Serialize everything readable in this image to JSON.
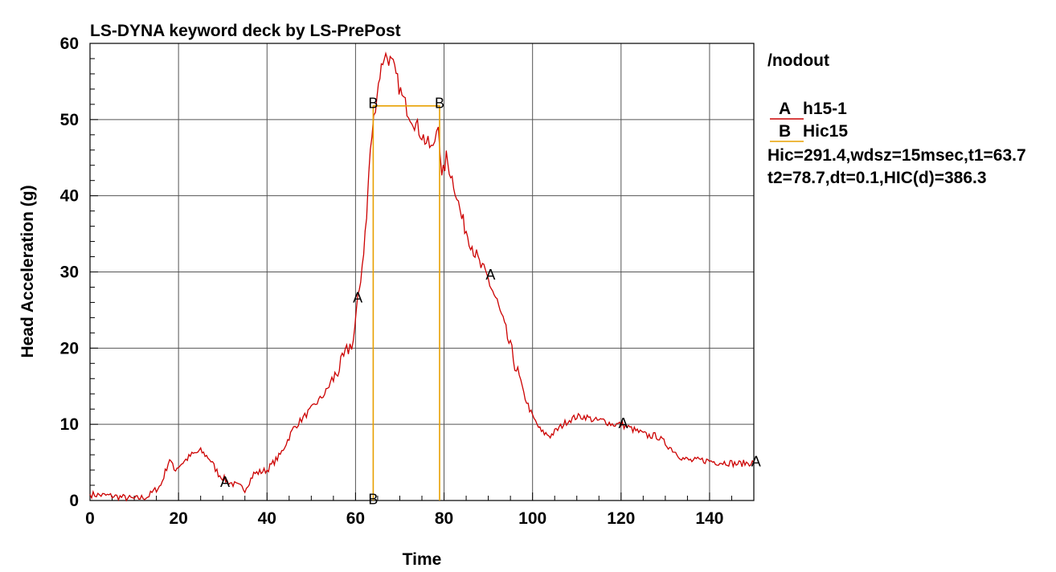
{
  "chart_data": {
    "type": "line",
    "title": "LS-DYNA keyword deck by LS-PrePost",
    "xlabel": "Time",
    "ylabel": "Head Acceleration (g)",
    "xlim": [
      0,
      150
    ],
    "ylim": [
      0,
      60
    ],
    "x_ticks": [
      "0",
      "20",
      "40",
      "60",
      "80",
      "100",
      "120",
      "140"
    ],
    "y_ticks": [
      "0",
      "10",
      "20",
      "30",
      "40",
      "50",
      "60"
    ],
    "grid": true,
    "legend_position": "right",
    "legend": {
      "header": "/nodout",
      "entries": [
        {
          "marker": "A",
          "name": "h15-1",
          "color": "#cc0000"
        },
        {
          "marker": "B",
          "name": "Hic15",
          "color": "#e8a000"
        }
      ],
      "notes": [
        "Hic=291.4,wdsz=15msec,t1=63.7",
        "t2=78.7,dt=0.1,HIC(d)=386.3"
      ]
    },
    "series": [
      {
        "name": "h15-1",
        "marker": "A",
        "color": "#cc0000",
        "x": [
          0,
          5,
          10,
          13,
          16,
          18,
          19,
          21,
          23,
          25,
          27,
          29,
          31,
          33,
          35,
          37,
          40,
          43,
          46,
          50,
          53,
          56,
          58,
          59.5,
          60.5,
          61.5,
          62.5,
          63,
          63.7,
          64.5,
          65.5,
          66.5,
          67.5,
          68.5,
          69.5,
          70.5,
          72,
          74,
          76,
          77.5,
          78.7,
          79.5,
          80.5,
          81.5,
          82.5,
          84,
          86,
          88,
          90,
          92,
          94,
          96,
          98,
          100,
          102,
          104,
          106,
          108,
          110,
          112,
          114,
          116,
          118,
          120,
          122,
          124,
          126,
          128,
          130,
          132,
          134,
          136,
          138,
          140,
          142,
          144,
          146,
          148,
          150
        ],
        "y": [
          0.8,
          0.6,
          0.2,
          0.5,
          2,
          5.5,
          4,
          5,
          6,
          6.5,
          5.5,
          3.5,
          2.5,
          2,
          1.5,
          3.5,
          4,
          6,
          9.5,
          12,
          14,
          17,
          19.5,
          21,
          26,
          31,
          37,
          43,
          48,
          52,
          56,
          58.5,
          58,
          57,
          55,
          53,
          51,
          49,
          47,
          46,
          50,
          42,
          45,
          43,
          41,
          37,
          34,
          31,
          29,
          26,
          22,
          18,
          14,
          11,
          9,
          8.5,
          9.5,
          10.5,
          11,
          11,
          10.5,
          10.5,
          10,
          10,
          9.5,
          9,
          8.5,
          8.5,
          7.5,
          6.5,
          5.5,
          5.2,
          5.3,
          5.2,
          5,
          5,
          4.8,
          4.9,
          5
        ]
      },
      {
        "name": "Hic15",
        "marker": "B",
        "color": "#e8a000",
        "x": [
          64,
          64,
          79,
          79
        ],
        "y": [
          0,
          51.8,
          51.8,
          0
        ]
      }
    ],
    "annotations": [
      {
        "text": "A",
        "x": 30.5,
        "y": 1.8
      },
      {
        "text": "A",
        "x": 60.5,
        "y": 26
      },
      {
        "text": "A",
        "x": 90.5,
        "y": 29
      },
      {
        "text": "A",
        "x": 120.5,
        "y": 9.5
      },
      {
        "text": "A",
        "x": 150.5,
        "y": 4.5
      },
      {
        "text": "B",
        "x": 64,
        "y": 51.5
      },
      {
        "text": "B",
        "x": 79,
        "y": 51.5
      },
      {
        "text": "B",
        "x": 64,
        "y": -0.5
      }
    ]
  }
}
